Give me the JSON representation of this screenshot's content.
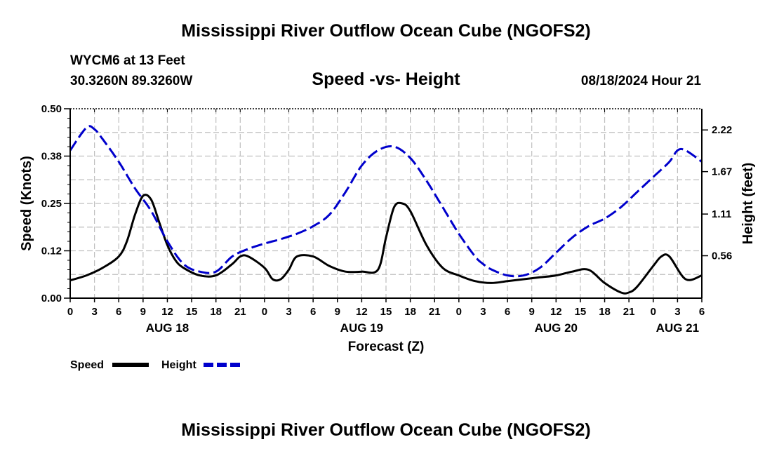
{
  "header": {
    "title": "Mississippi River Outflow Ocean Cube (NGOFS2)",
    "station": "WYCM6 at 13 Feet",
    "coords": "30.3260N  89.3260W",
    "subtitle": "Speed -vs- Height",
    "datetime": "08/18/2024 Hour 21"
  },
  "footer": {
    "title": "Mississippi River Outflow Ocean Cube (NGOFS2)"
  },
  "chart_data": {
    "type": "line",
    "title": "Speed -vs- Height",
    "xlabel": "Forecast (Z)",
    "ylabel": "Speed (Knots)",
    "y2label": "Height (feet)",
    "xlim": [
      0,
      78
    ],
    "ylim": [
      0,
      0.5
    ],
    "y2lim": [
      0,
      2.5
    ],
    "grid": true,
    "legend_position": "bottom-left",
    "x_tick_labels": [
      "0",
      "3",
      "6",
      "9",
      "12",
      "15",
      "18",
      "21",
      "0",
      "3",
      "6",
      "9",
      "12",
      "15",
      "18",
      "21",
      "0",
      "3",
      "6",
      "9",
      "12",
      "15",
      "18",
      "21",
      "0",
      "3",
      "6"
    ],
    "y_ticks": [
      0,
      0.125,
      0.25,
      0.375,
      0.5
    ],
    "y_tick_labels": [
      "0.00",
      "0.12",
      "0.25",
      "0.38",
      "0.50"
    ],
    "y2_ticks": [
      0.56,
      1.11,
      1.67,
      2.22
    ],
    "y2_tick_labels": [
      "0.56",
      "1.11",
      "1.67",
      "2.22"
    ],
    "date_labels": [
      {
        "hour": 12,
        "label": "AUG 18"
      },
      {
        "hour": 36,
        "label": "AUG 19"
      },
      {
        "hour": 60,
        "label": "AUG 20"
      },
      {
        "hour": 75,
        "label": "AUG 21"
      }
    ],
    "series": [
      {
        "name": "Speed",
        "axis": "left",
        "color": "#000000",
        "dash": "solid",
        "x": [
          0,
          2,
          4,
          6,
          7,
          8,
          9,
          10,
          11,
          12,
          13,
          14,
          16,
          18,
          20,
          21,
          22,
          24,
          25,
          26,
          27,
          28,
          30,
          32,
          34,
          36,
          38,
          39,
          40,
          41,
          42,
          44,
          46,
          48,
          50,
          52,
          54,
          56,
          58,
          60,
          62,
          64,
          66,
          68,
          69,
          70,
          72,
          73,
          74,
          76,
          78
        ],
        "y": [
          0.047,
          0.06,
          0.08,
          0.11,
          0.15,
          0.22,
          0.27,
          0.26,
          0.2,
          0.14,
          0.1,
          0.08,
          0.06,
          0.06,
          0.09,
          0.11,
          0.11,
          0.08,
          0.05,
          0.05,
          0.075,
          0.11,
          0.11,
          0.085,
          0.07,
          0.07,
          0.075,
          0.16,
          0.24,
          0.25,
          0.23,
          0.14,
          0.08,
          0.06,
          0.045,
          0.04,
          0.045,
          0.05,
          0.055,
          0.06,
          0.07,
          0.075,
          0.04,
          0.015,
          0.015,
          0.03,
          0.085,
          0.11,
          0.11,
          0.05,
          0.06
        ]
      },
      {
        "name": "Height",
        "axis": "right",
        "color": "#0000cc",
        "dash": "dashed",
        "x": [
          0,
          2,
          3,
          4,
          6,
          8,
          10,
          12,
          14,
          16,
          18,
          20,
          22,
          24,
          26,
          28,
          30,
          32,
          34,
          36,
          38,
          40,
          42,
          44,
          46,
          48,
          50,
          51,
          52,
          54,
          56,
          58,
          60,
          62,
          64,
          66,
          68,
          70,
          72,
          74,
          75,
          76,
          78
        ],
        "y": [
          1.95,
          2.25,
          2.23,
          2.1,
          1.8,
          1.45,
          1.15,
          0.75,
          0.45,
          0.35,
          0.35,
          0.55,
          0.65,
          0.72,
          0.78,
          0.85,
          0.95,
          1.1,
          1.4,
          1.75,
          1.95,
          2.0,
          1.85,
          1.55,
          1.2,
          0.85,
          0.55,
          0.45,
          0.38,
          0.3,
          0.3,
          0.4,
          0.6,
          0.8,
          0.95,
          1.05,
          1.2,
          1.4,
          1.6,
          1.8,
          1.95,
          1.95,
          1.8
        ]
      }
    ]
  }
}
